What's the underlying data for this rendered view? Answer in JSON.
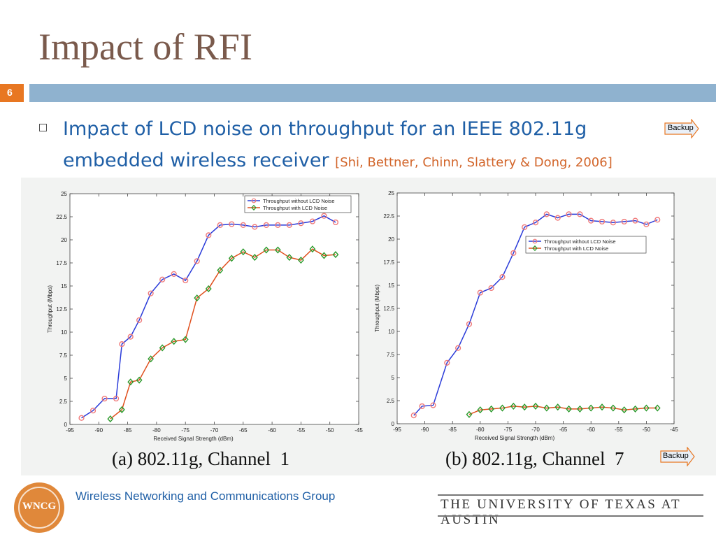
{
  "slide": {
    "title": "Impact of RFI",
    "number": "6",
    "bullet_text": "Impact of LCD noise on throughput for an IEEE 802.11g embedded wireless receiver",
    "citation": "[Shi, Bettner, Chinn, Slattery & Dong, 2006]",
    "backup_top_label": "Backup",
    "backup_bottom_label": "Backup"
  },
  "footer": {
    "logo_text": "WNCG",
    "group_name": "Wireless Networking and Communications Group",
    "university": "THE UNIVERSITY OF TEXAS AT AUSTIN"
  },
  "colors": {
    "title": "#7a5a4c",
    "accent_orange": "#e87722",
    "header_bar": "#8fb2cf",
    "text_blue": "#1f5fa6",
    "citation": "#d2652a",
    "series_without_noise": "#2a3bd9",
    "series_with_noise": "#e0501e",
    "marker_without_noise": "#f07a7a",
    "marker_with_noise": "#2c9a2c"
  },
  "chart_data": [
    {
      "type": "line",
      "caption": "(a) 802.11g, Channel  1",
      "xlabel": "Received Signal Strength (dBm)",
      "ylabel": "Throughput (Mbps)",
      "xlim": [
        -95,
        -45
      ],
      "ylim": [
        0,
        25
      ],
      "xticks": [
        "-95",
        "-90",
        "-85",
        "-80",
        "-75",
        "-70",
        "-65",
        "-60",
        "-55",
        "-50",
        "-45"
      ],
      "yticks": [
        "0",
        "2.5",
        "5",
        "7.5",
        "10",
        "12.5",
        "15",
        "17.5",
        "20",
        "22.5",
        "25"
      ],
      "legend": "top-right",
      "series": [
        {
          "name": "Throughput without LCD Noise",
          "x": [
            -93,
            -91,
            -89,
            -87,
            -86,
            -84.5,
            -83,
            -81,
            -79,
            -77,
            -75,
            -73,
            -71,
            -69,
            -67,
            -65,
            -63,
            -61,
            -59,
            -57,
            -55,
            -53,
            -51,
            -49
          ],
          "y": [
            0.7,
            1.5,
            2.8,
            2.8,
            8.7,
            9.5,
            11.3,
            14.2,
            15.7,
            16.3,
            15.6,
            17.7,
            20.5,
            21.6,
            21.7,
            21.6,
            21.4,
            21.6,
            21.6,
            21.6,
            21.8,
            22.0,
            22.6,
            21.9
          ]
        },
        {
          "name": "Throughput with LCD Noise",
          "x": [
            -88,
            -86,
            -84.5,
            -83,
            -81,
            -79,
            -77,
            -75,
            -73,
            -71,
            -69,
            -67,
            -65,
            -63,
            -61,
            -59,
            -57,
            -55,
            -53,
            -51,
            -49
          ],
          "y": [
            0.6,
            1.6,
            4.6,
            4.8,
            7.1,
            8.3,
            9.0,
            9.2,
            13.7,
            14.7,
            16.7,
            18.0,
            18.7,
            18.1,
            18.9,
            18.9,
            18.1,
            17.8,
            19.0,
            18.3,
            18.4
          ]
        }
      ]
    },
    {
      "type": "line",
      "caption": "(b) 802.11g, Channel  7",
      "xlabel": "Received Signal Strength (dBm)",
      "ylabel": "Throughput (Mbps)",
      "xlim": [
        -95,
        -45
      ],
      "ylim": [
        0,
        25
      ],
      "xticks": [
        "-95",
        "-90",
        "-85",
        "-80",
        "-75",
        "-70",
        "-65",
        "-60",
        "-55",
        "-50",
        "-45"
      ],
      "yticks": [
        "0",
        "2.5",
        "5",
        "7.5",
        "10",
        "12.5",
        "15",
        "17.5",
        "20",
        "22.5",
        "25"
      ],
      "legend": "center-right",
      "series": [
        {
          "name": "Throughput without LCD Noise",
          "x": [
            -92,
            -90.5,
            -88.5,
            -86,
            -84,
            -82,
            -80,
            -78,
            -76,
            -74,
            -72,
            -70,
            -68,
            -66,
            -64,
            -62,
            -60,
            -58,
            -56,
            -54,
            -52,
            -50,
            -48
          ],
          "y": [
            0.9,
            1.9,
            2.0,
            6.6,
            8.2,
            10.8,
            14.2,
            14.7,
            15.9,
            18.5,
            21.3,
            21.8,
            22.7,
            22.3,
            22.7,
            22.7,
            22.0,
            21.9,
            21.8,
            21.9,
            22.0,
            21.6,
            22.1
          ]
        },
        {
          "name": "Throughput with LCD Noise",
          "x": [
            -82,
            -80,
            -78,
            -76,
            -74,
            -72,
            -70,
            -68,
            -66,
            -64,
            -62,
            -60,
            -58,
            -56,
            -54,
            -52,
            -50,
            -48
          ],
          "y": [
            1.0,
            1.5,
            1.6,
            1.7,
            1.9,
            1.8,
            1.9,
            1.7,
            1.8,
            1.6,
            1.6,
            1.7,
            1.8,
            1.7,
            1.5,
            1.6,
            1.7,
            1.7
          ]
        }
      ]
    }
  ]
}
